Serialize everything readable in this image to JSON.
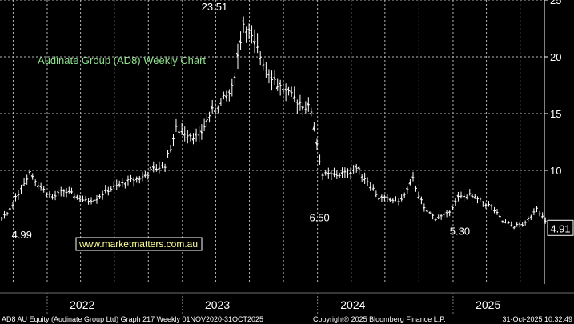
{
  "chart_data": {
    "type": "line",
    "style": "ohlc-bars",
    "title": "Audinate Group (AD8) Weekly Chart",
    "watermark": "www.marketmatters.com.au",
    "xlabel": "",
    "ylabel": "",
    "ylim": [
      0,
      25
    ],
    "yticks": [
      10,
      15,
      20,
      25
    ],
    "x_tick_labels": [
      "2022",
      "2023",
      "2024",
      "2025"
    ],
    "grid": true,
    "grid_color": "#b4b4b4",
    "background": "#000000",
    "line_color": "#ffffff",
    "title_color": "#8fe38f",
    "last_value": "4.91",
    "annotations": [
      {
        "text": "23.51",
        "date": "2023-04",
        "value": 23.51
      },
      {
        "text": "4.99",
        "date": "2021-11",
        "value": 4.99
      },
      {
        "text": "6.50",
        "date": "2024-01",
        "value": 6.5
      },
      {
        "text": "5.30",
        "date": "2025-01",
        "value": 5.3
      }
    ],
    "series": [
      {
        "x": [
          "2021-05",
          "2021-06",
          "2021-07",
          "2021-08",
          "2021-09",
          "2021-10",
          "2021-11",
          "2021-12",
          "2022-01",
          "2022-02",
          "2022-03",
          "2022-04",
          "2022-05",
          "2022-06",
          "2022-07",
          "2022-08",
          "2022-09",
          "2022-10",
          "2022-11",
          "2022-12",
          "2023-01",
          "2023-02",
          "2023-03",
          "2023-04",
          "2023-05",
          "2023-06",
          "2023-07",
          "2023-08",
          "2023-09",
          "2023-10",
          "2023-11",
          "2023-12",
          "2024-01",
          "2024-02",
          "2024-03",
          "2024-04",
          "2024-05",
          "2024-06",
          "2024-07",
          "2024-08",
          "2024-09",
          "2024-10",
          "2024-11",
          "2024-12",
          "2025-01",
          "2025-02",
          "2025-03",
          "2025-04",
          "2025-05",
          "2025-06",
          "2025-07",
          "2025-08",
          "2025-09",
          "2025-10"
        ],
        "values": [
          6.8,
          6.5,
          5.9,
          5.2,
          6.2,
          8.0,
          9.9,
          8.5,
          7.6,
          8.2,
          7.8,
          7.3,
          7.6,
          8.3,
          8.7,
          9.1,
          9.4,
          10.1,
          10.5,
          13.6,
          13.3,
          12.9,
          14.9,
          15.9,
          17.1,
          23.0,
          21.0,
          19.2,
          17.6,
          16.6,
          16.0,
          15.3,
          9.6,
          9.6,
          9.7,
          10.2,
          9.1,
          7.6,
          7.4,
          7.4,
          9.2,
          6.6,
          5.8,
          6.1,
          7.6,
          7.8,
          7.3,
          6.8,
          5.5,
          5.1,
          5.3,
          6.8,
          5.0,
          4.91
        ]
      }
    ]
  },
  "footer": {
    "left": "AD8 AU Equity (Audinate Group Ltd) Graph 217 Weekly 01NOV2020-31OCT2025",
    "center": "Copyright® 2025 Bloomberg Finance L.P.",
    "right": "31-Oct-2025 10:32:49"
  }
}
